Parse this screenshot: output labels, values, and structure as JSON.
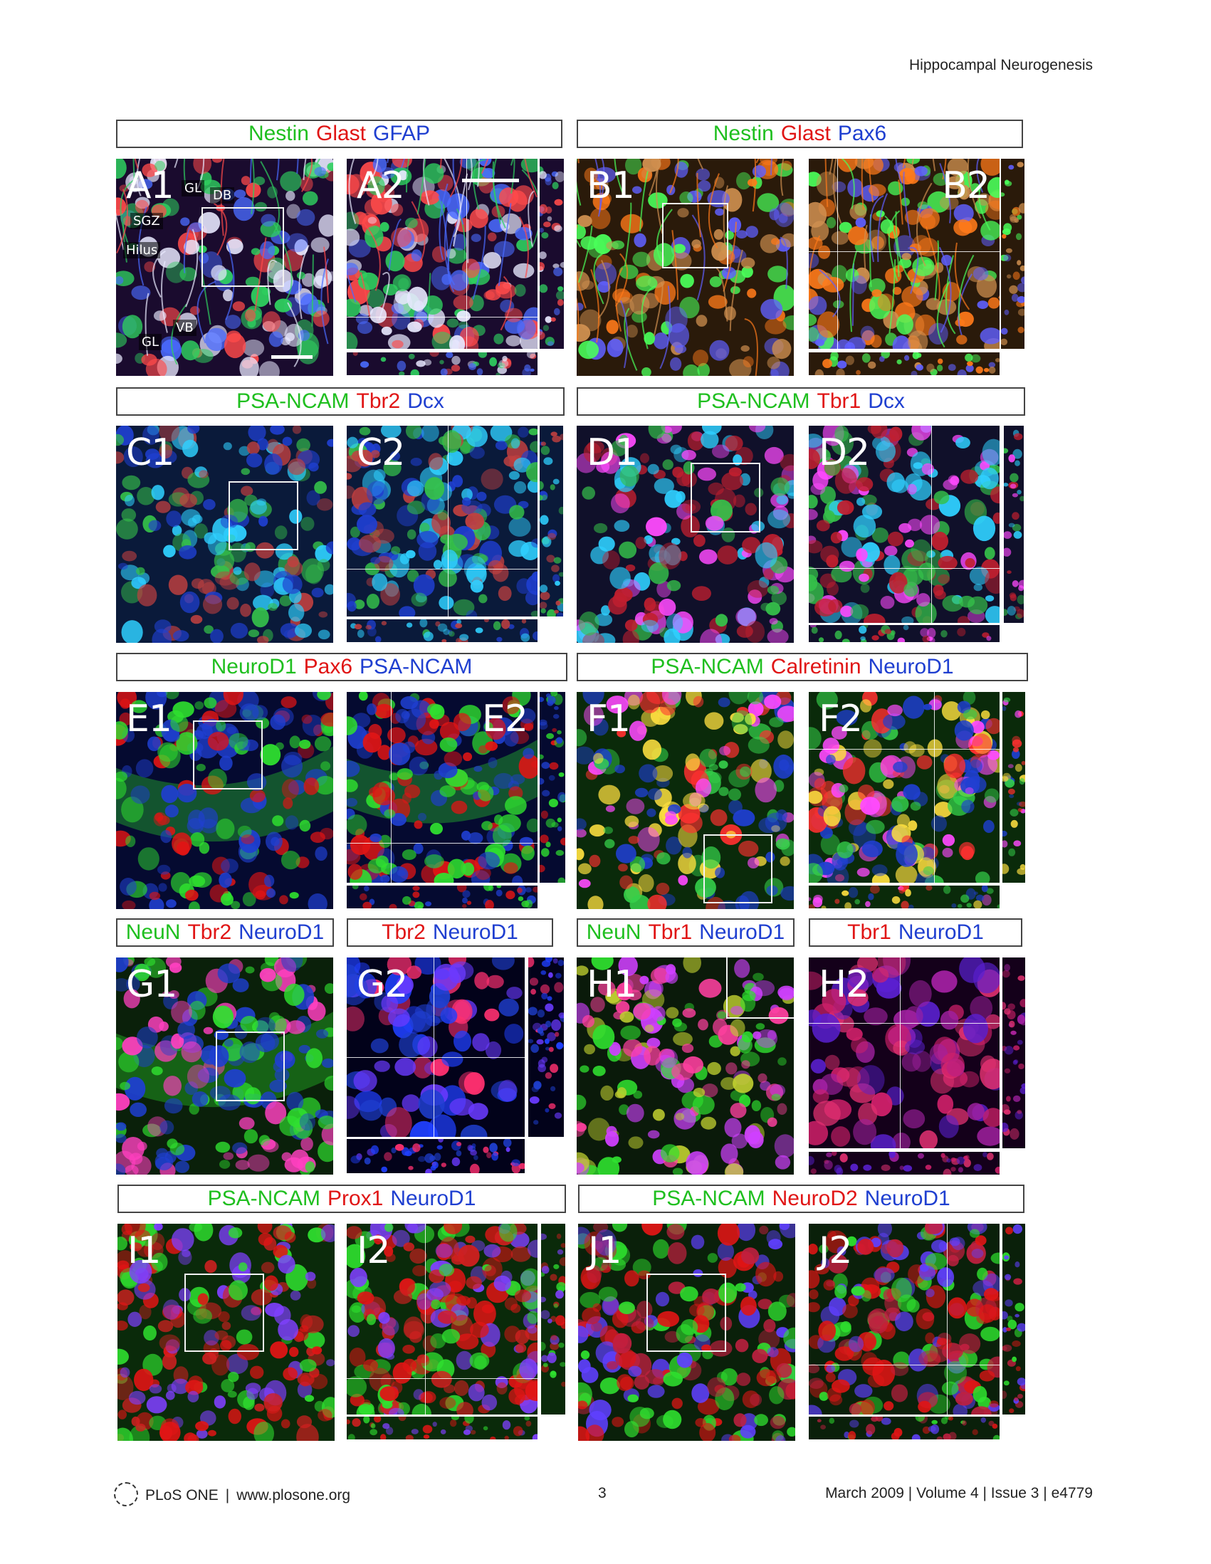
{
  "header": {
    "running_title": "Hippocampal Neurogenesis"
  },
  "figure": {
    "rows": [
      {
        "left_markers": [
          {
            "text": "Nestin",
            "color": "g"
          },
          {
            "text": "Glast",
            "color": "r"
          },
          {
            "text": "GFAP",
            "color": "b"
          }
        ],
        "right_markers": [
          {
            "text": "Nestin",
            "color": "g"
          },
          {
            "text": "Glast",
            "color": "r"
          },
          {
            "text": "Pax6",
            "color": "b"
          }
        ]
      },
      {
        "left_markers": [
          {
            "text": "PSA-NCAM",
            "color": "g"
          },
          {
            "text": "Tbr2",
            "color": "r"
          },
          {
            "text": "Dcx",
            "color": "b"
          }
        ],
        "right_markers": [
          {
            "text": "PSA-NCAM",
            "color": "g"
          },
          {
            "text": "Tbr1",
            "color": "r"
          },
          {
            "text": "Dcx",
            "color": "b"
          }
        ]
      },
      {
        "left_markers": [
          {
            "text": "NeuroD1",
            "color": "g"
          },
          {
            "text": "Pax6",
            "color": "r"
          },
          {
            "text": "PSA-NCAM",
            "color": "b"
          }
        ],
        "right_markers": [
          {
            "text": "PSA-NCAM",
            "color": "g"
          },
          {
            "text": "Calretinin",
            "color": "r"
          },
          {
            "text": "NeuroD1",
            "color": "b"
          }
        ]
      },
      {
        "g1_markers": [
          {
            "text": "NeuN",
            "color": "g"
          },
          {
            "text": "Tbr2",
            "color": "r"
          },
          {
            "text": "NeuroD1",
            "color": "b"
          }
        ],
        "g2_markers": [
          {
            "text": "Tbr2",
            "color": "r"
          },
          {
            "text": "NeuroD1",
            "color": "b"
          }
        ],
        "h1_markers": [
          {
            "text": "NeuN",
            "color": "g"
          },
          {
            "text": "Tbr1",
            "color": "r"
          },
          {
            "text": "NeuroD1",
            "color": "b"
          }
        ],
        "h2_markers": [
          {
            "text": "Tbr1",
            "color": "r"
          },
          {
            "text": "NeuroD1",
            "color": "b"
          }
        ]
      },
      {
        "left_markers": [
          {
            "text": "PSA-NCAM",
            "color": "g"
          },
          {
            "text": "Prox1",
            "color": "r"
          },
          {
            "text": "NeuroD1",
            "color": "b"
          }
        ],
        "right_markers": [
          {
            "text": "PSA-NCAM",
            "color": "g"
          },
          {
            "text": "NeuroD2",
            "color": "r"
          },
          {
            "text": "NeuroD1",
            "color": "b"
          }
        ]
      }
    ],
    "panel_labels": {
      "A1": "A1",
      "A2": "A2",
      "B1": "B1",
      "B2": "B2",
      "C1": "C1",
      "C2": "C2",
      "D1": "D1",
      "D2": "D2",
      "E1": "E1",
      "E2": "E2",
      "F1": "F1",
      "F2": "F2",
      "G1": "G1",
      "G2": "G2",
      "H1": "H1",
      "H2": "H2",
      "I1": "I1",
      "I2": "I2",
      "J1": "J1",
      "J2": "J2"
    },
    "a1_annotations": {
      "gl_top": "GL",
      "db": "DB",
      "sgz": "SGZ",
      "hilus": "Hilus",
      "vb": "VB",
      "gl_bottom": "GL"
    }
  },
  "footer": {
    "journal": "PLoS ONE",
    "separator": "|",
    "url": "www.plosone.org",
    "page": "3",
    "citation": "March 2009 | Volume 4 | Issue 3 | e4779"
  },
  "palette": {
    "green": "#1fbf1f",
    "red": "#e01515",
    "blue": "#1f3fd0"
  }
}
